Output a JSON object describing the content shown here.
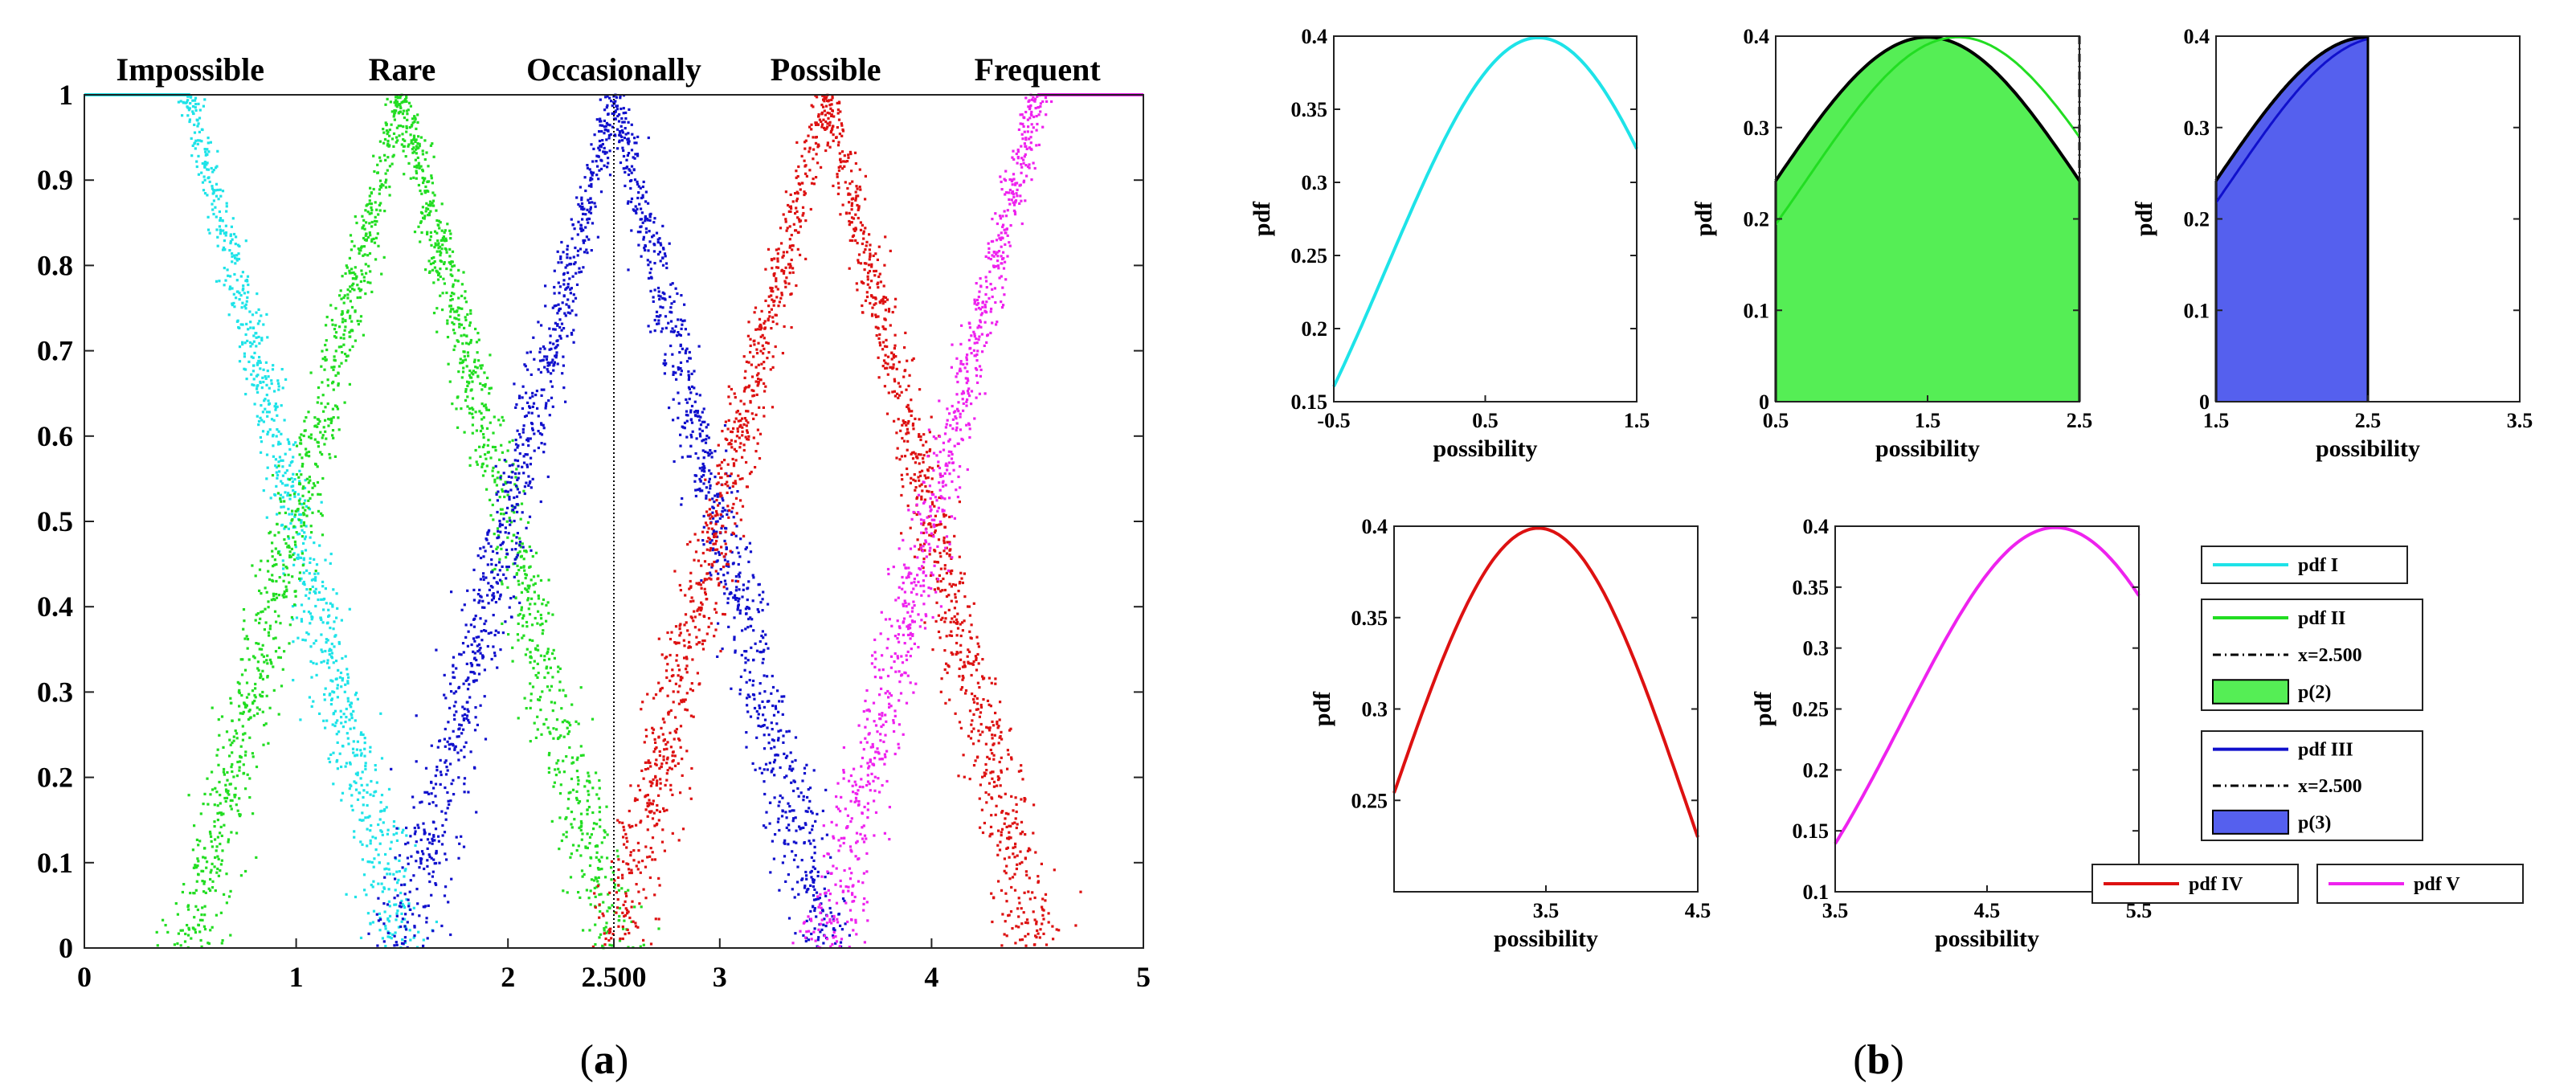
{
  "captions": {
    "a_open": "(",
    "a_letter": "a",
    "a_close": ")",
    "b_open": "(",
    "b_letter": "b",
    "b_close": ")"
  },
  "chart_data": [
    {
      "id": "a",
      "type": "scatter",
      "xlim": [
        0,
        5
      ],
      "ylim": [
        0,
        1
      ],
      "xticks": [
        "0",
        "1",
        "2",
        "2.500",
        "3",
        "4",
        "5"
      ],
      "xtick_values": [
        0,
        1,
        2,
        2.5,
        3,
        4,
        5
      ],
      "yticks": [
        "0",
        "0.1",
        "0.2",
        "0.3",
        "0.4",
        "0.5",
        "0.6",
        "0.7",
        "0.8",
        "0.9",
        "1"
      ],
      "vline": 2.5,
      "categories": [
        {
          "name": "Impossible",
          "color": "#1ee3e8",
          "peak_x": 0.5,
          "shape": "left-shoulder",
          "support": [
            0.5,
            1.5
          ]
        },
        {
          "name": "Rare",
          "color": "#22dd22",
          "peak_x": 1.5,
          "shape": "triangle",
          "support": [
            0.5,
            2.5
          ]
        },
        {
          "name": "Occasionally",
          "color": "#1010cc",
          "peak_x": 2.5,
          "shape": "triangle",
          "support": [
            1.5,
            3.5
          ]
        },
        {
          "name": "Possible",
          "color": "#dd1111",
          "peak_x": 3.5,
          "shape": "triangle",
          "support": [
            2.5,
            4.5
          ]
        },
        {
          "name": "Frequent",
          "color": "#ee22ee",
          "peak_x": 4.5,
          "shape": "right-shoulder",
          "support": [
            3.5,
            4.5
          ]
        }
      ]
    },
    {
      "id": "b1",
      "type": "line",
      "xlabel": "possibility",
      "ylabel": "pdf",
      "xlim": [
        -0.5,
        1.5
      ],
      "ylim": [
        0.15,
        0.4
      ],
      "xticks": [
        "-0.5",
        "0.5",
        "1.5"
      ],
      "xtick_values": [
        -0.5,
        0.5,
        1.5
      ],
      "yticks": [
        "0.15",
        "0.2",
        "0.25",
        "0.3",
        "0.35",
        "0.4"
      ],
      "ytick_values": [
        0.15,
        0.2,
        0.25,
        0.3,
        0.35,
        0.4
      ],
      "series": [
        {
          "name": "pdf I",
          "color": "#1ee3e8",
          "mean": 0.85
        }
      ]
    },
    {
      "id": "b2",
      "type": "area",
      "xlabel": "possibility",
      "ylabel": "pdf",
      "xlim": [
        0.5,
        2.5
      ],
      "ylim": [
        0,
        0.4
      ],
      "xticks": [
        "0.5",
        "1.5",
        "2.5"
      ],
      "xtick_values": [
        0.5,
        1.5,
        2.5
      ],
      "yticks": [
        "0",
        "0.1",
        "0.2",
        "0.3",
        "0.4"
      ],
      "ytick_values": [
        0,
        0.1,
        0.2,
        0.3,
        0.4
      ],
      "series": [
        {
          "name": "pdf II",
          "color": "#22dd22",
          "mean": 1.7
        },
        {
          "name": "p(2)",
          "color": "#000000",
          "fill": "#55ee55",
          "mean": 1.5
        }
      ],
      "vline": 2.5
    },
    {
      "id": "b3",
      "type": "area",
      "xlabel": "possibility",
      "ylabel": "pdf",
      "xlim": [
        1.5,
        3.5
      ],
      "ylim": [
        0,
        0.4
      ],
      "xticks": [
        "1.5",
        "2.5",
        "3.5"
      ],
      "xtick_values": [
        1.5,
        2.5,
        3.5
      ],
      "yticks": [
        "0",
        "0.1",
        "0.2",
        "0.3",
        "0.4"
      ],
      "ytick_values": [
        0,
        0.1,
        0.2,
        0.3,
        0.4
      ],
      "series": [
        {
          "name": "pdf III",
          "color": "#1010cc",
          "mean": 2.6
        },
        {
          "name": "p(3)",
          "color": "#000000",
          "fill": "#5560ee",
          "mean": 2.5
        }
      ],
      "vline": 2.5
    },
    {
      "id": "b4",
      "type": "line",
      "xlabel": "possibility",
      "ylabel": "pdf",
      "xlim": [
        2.5,
        4.5
      ],
      "ylim": [
        0.2,
        0.4
      ],
      "xticks": [
        "3.5",
        "4.5"
      ],
      "xtick_values": [
        3.5,
        4.5
      ],
      "yticks": [
        "0.25",
        "0.3",
        "0.35",
        "0.4"
      ],
      "ytick_values": [
        0.25,
        0.3,
        0.35,
        0.4
      ],
      "series": [
        {
          "name": "pdf IV",
          "color": "#dd1111",
          "mean": 3.45
        }
      ]
    },
    {
      "id": "b5",
      "type": "line",
      "xlabel": "possibility",
      "ylabel": "pdf",
      "xlim": [
        3.5,
        5.5
      ],
      "ylim": [
        0.1,
        0.4
      ],
      "xticks": [
        "3.5",
        "4.5",
        "5.5"
      ],
      "xtick_values": [
        3.5,
        4.5,
        5.5
      ],
      "yticks": [
        "0.1",
        "0.15",
        "0.2",
        "0.25",
        "0.3",
        "0.35",
        "0.4"
      ],
      "ytick_values": [
        0.1,
        0.15,
        0.2,
        0.25,
        0.3,
        0.35,
        0.4
      ],
      "series": [
        {
          "name": "pdf V",
          "color": "#ee22ee",
          "mean": 4.95
        }
      ]
    }
  ],
  "legends": {
    "l1": {
      "entries": [
        {
          "label": "pdf I",
          "color": "#1ee3e8",
          "kind": "line"
        }
      ]
    },
    "l2": {
      "entries": [
        {
          "label": "pdf II",
          "color": "#22dd22",
          "kind": "line"
        },
        {
          "label": "x=2.500",
          "color": "#000000",
          "kind": "dashdot"
        },
        {
          "label": "p(2)",
          "color": "#55ee55",
          "kind": "patch"
        }
      ]
    },
    "l3": {
      "entries": [
        {
          "label": "pdf III",
          "color": "#1010cc",
          "kind": "line"
        },
        {
          "label": "x=2.500",
          "color": "#000000",
          "kind": "dashdot"
        },
        {
          "label": "p(3)",
          "color": "#5560ee",
          "kind": "patch"
        }
      ]
    },
    "l4": {
      "entries": [
        {
          "label": "pdf IV",
          "color": "#dd1111",
          "kind": "line"
        }
      ]
    },
    "l5": {
      "entries": [
        {
          "label": "pdf V",
          "color": "#ee22ee",
          "kind": "line"
        }
      ]
    }
  }
}
